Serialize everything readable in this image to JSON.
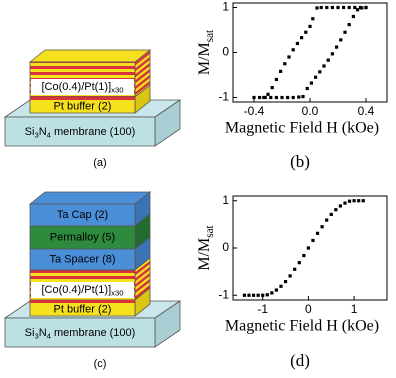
{
  "figure": {
    "panel_a": {
      "label": "(a)",
      "layers": [
        [
          {
            "t": "[Co(0.4)/Pt(1)]"
          },
          {
            "t": "x30",
            "sub": true
          }
        ],
        [
          {
            "t": "Pt buffer (2)"
          }
        ]
      ],
      "substrate": [
        {
          "t": "Si"
        },
        {
          "t": "3",
          "sub": true
        },
        {
          "t": "N"
        },
        {
          "t": "4",
          "sub": true
        },
        {
          "t": " membrane (100)"
        }
      ]
    },
    "panel_c": {
      "label": "(c)",
      "layers": [
        [
          {
            "t": "Ta Cap (2)"
          }
        ],
        [
          {
            "t": "Permalloy (5)"
          }
        ],
        [
          {
            "t": "Ta Spacer (8)"
          }
        ],
        [
          {
            "t": "[Co(0.4)/Pt(1)]"
          },
          {
            "t": "x30",
            "sub": true
          }
        ],
        [
          {
            "t": "Pt buffer (2)"
          }
        ]
      ],
      "substrate": [
        {
          "t": "Si"
        },
        {
          "t": "3",
          "sub": true
        },
        {
          "t": "N"
        },
        {
          "t": "4",
          "sub": true
        },
        {
          "t": " membrane (100)"
        }
      ]
    }
  },
  "chart_data": [
    {
      "type": "scatter",
      "label": "(b)",
      "ylabel": [
        {
          "t": "M/M"
        },
        {
          "t": "sat",
          "sub": true
        }
      ],
      "xlabel": "Magnetic Field H (kOe)",
      "xlim": [
        -0.55,
        0.55
      ],
      "xticks": [
        -0.4,
        {
          "value": 0,
          "label": "0.0"
        },
        0.4
      ],
      "ylim": [
        -1.1,
        1.1
      ],
      "yticks": [
        -1,
        0,
        1
      ],
      "series": [
        {
          "color": "#000000",
          "x": [
            0.4,
            0.36,
            0.32,
            0.28,
            0.24,
            0.2,
            0.16,
            0.12,
            0.08,
            0.05,
            0.02,
            0.0,
            -0.03,
            -0.06,
            -0.09,
            -0.12,
            -0.15,
            -0.18,
            -0.21,
            -0.24,
            -0.27,
            -0.3,
            -0.33
          ],
          "values": [
            1,
            1,
            1,
            1,
            1,
            1,
            1,
            1,
            1,
            0.99,
            0.75,
            0.58,
            0.45,
            0.33,
            0.2,
            0.06,
            -0.1,
            -0.25,
            -0.42,
            -0.6,
            -0.78,
            -0.93,
            -1
          ]
        },
        {
          "color": "#000000",
          "x": [
            -0.4,
            -0.36,
            -0.32,
            -0.28,
            -0.24,
            -0.2,
            -0.16,
            -0.12,
            -0.08,
            -0.05,
            -0.02,
            0.01,
            0.04,
            0.07,
            0.1,
            0.13,
            0.16,
            0.19,
            0.22,
            0.25,
            0.28,
            0.31,
            0.34,
            0.37,
            0.4
          ],
          "values": [
            -1,
            -1,
            -1,
            -1,
            -1,
            -1,
            -1,
            -1,
            -0.99,
            -0.98,
            -0.8,
            -0.68,
            -0.55,
            -0.43,
            -0.3,
            -0.17,
            -0.03,
            0.12,
            0.28,
            0.45,
            0.62,
            0.8,
            0.95,
            0.99,
            1
          ]
        }
      ]
    },
    {
      "type": "scatter",
      "label": "(d)",
      "ylabel": [
        {
          "t": "M/M"
        },
        {
          "t": "sat",
          "sub": true
        }
      ],
      "xlabel": "Magnetic Field H (kOe)",
      "xlim": [
        -1.65,
        1.72
      ],
      "xticks": [
        -1,
        0,
        1
      ],
      "ylim": [
        -1.1,
        1.1
      ],
      "yticks": [
        -1,
        0,
        1
      ],
      "series": [
        {
          "color": "#000000",
          "x": [
            -1.4,
            -1.3,
            -1.2,
            -1.1,
            -1.0,
            -0.9,
            -0.8,
            -0.7,
            -0.6,
            -0.5,
            -0.4,
            -0.3,
            -0.2,
            -0.1,
            0,
            0.1,
            0.2,
            0.3,
            0.4,
            0.5,
            0.6,
            0.7,
            0.8,
            0.9,
            1.0,
            1.1,
            1.2
          ],
          "values": [
            -1,
            -1,
            -1,
            -1,
            -1,
            -0.99,
            -0.95,
            -0.89,
            -0.81,
            -0.71,
            -0.59,
            -0.45,
            -0.31,
            -0.16,
            0,
            0.16,
            0.31,
            0.45,
            0.59,
            0.71,
            0.81,
            0.89,
            0.95,
            0.99,
            1,
            1,
            1
          ]
        }
      ]
    }
  ]
}
